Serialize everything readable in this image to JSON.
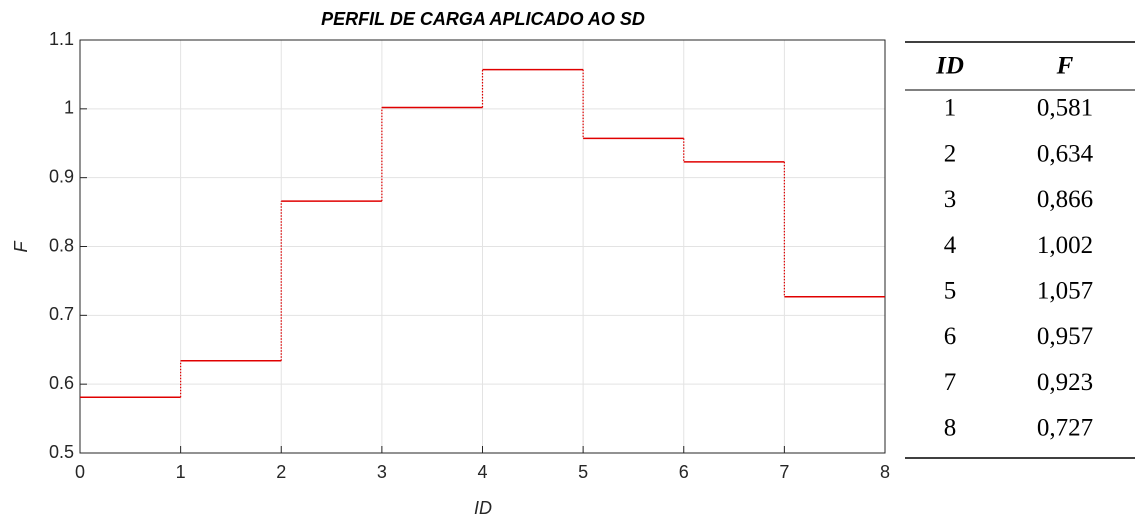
{
  "chart_data": {
    "type": "step",
    "title": "PERFIL DE CARGA APLICADO AO SD",
    "x_label": "ID",
    "y_label": "F",
    "x": [
      0,
      1,
      2,
      3,
      4,
      5,
      6,
      7
    ],
    "values": [
      0.581,
      0.634,
      0.866,
      1.002,
      1.057,
      0.957,
      0.923,
      0.727
    ],
    "color": "#e00000",
    "xlim": [
      0,
      8
    ],
    "xticks": [
      0,
      1,
      2,
      3,
      4,
      5,
      6,
      7,
      8
    ],
    "ylim": [
      0.5,
      1.1
    ],
    "yticks": [
      0.5,
      0.6,
      0.7,
      0.8,
      0.9,
      1,
      1.1
    ],
    "grid": true
  },
  "table": {
    "header": [
      "ID",
      "F"
    ],
    "rows": [
      [
        "1",
        "0,581"
      ],
      [
        "2",
        "0,634"
      ],
      [
        "3",
        "0,866"
      ],
      [
        "4",
        "1,002"
      ],
      [
        "5",
        "1,057"
      ],
      [
        "6",
        "0,957"
      ],
      [
        "7",
        "0,923"
      ],
      [
        "8",
        "0,727"
      ]
    ]
  }
}
